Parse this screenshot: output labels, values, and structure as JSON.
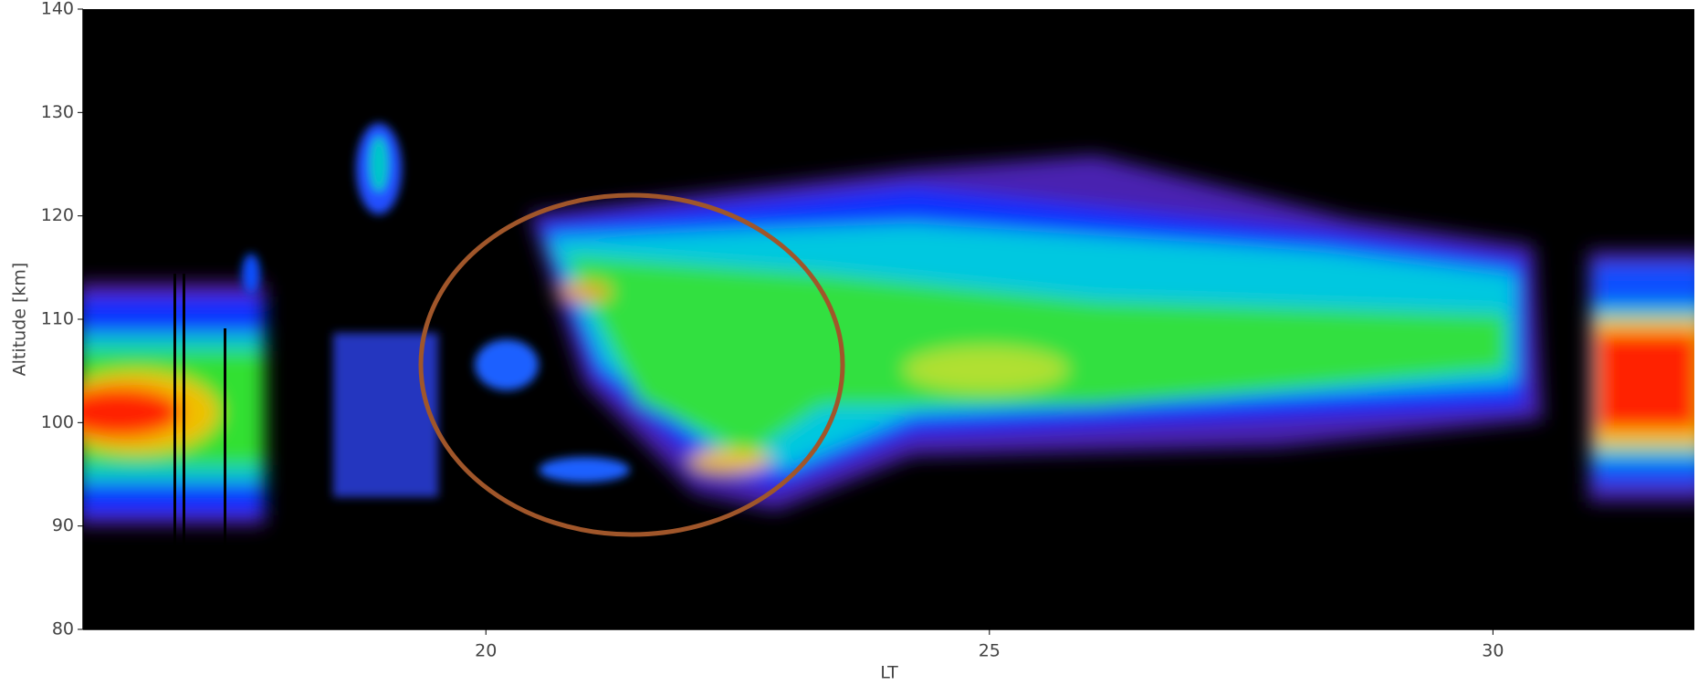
{
  "chart_data": {
    "type": "heatmap",
    "xlabel": "LT",
    "ylabel": "Altitude [km]",
    "xlim": [
      16,
      32
    ],
    "ylim": [
      80,
      140
    ],
    "xticks": [
      20,
      25,
      30
    ],
    "yticks": [
      80,
      90,
      100,
      110,
      120,
      130,
      140
    ]
  }
}
